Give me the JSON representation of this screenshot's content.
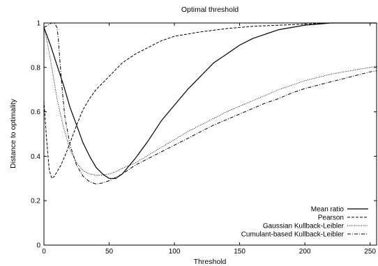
{
  "chart_data": {
    "type": "line",
    "title": "Optimal threshold",
    "xlabel": "Threshold",
    "ylabel": "Distance to optimality",
    "xlim": [
      0,
      255
    ],
    "ylim": [
      0,
      1
    ],
    "x_ticks": [
      0,
      50,
      100,
      150,
      200,
      250
    ],
    "y_ticks": [
      0,
      0.2,
      0.4,
      0.6,
      0.8,
      1
    ],
    "x_tick_labels": [
      "0",
      "50",
      "100",
      "150",
      "200",
      "250"
    ],
    "y_tick_labels": [
      "0",
      "0.2",
      "0.4",
      "0.6",
      "0.8",
      "1"
    ],
    "grid": false,
    "legend_position": "bottom-right",
    "series": [
      {
        "name": "Mean ratio",
        "dash": "solid",
        "x": [
          0,
          5,
          10,
          15,
          20,
          25,
          30,
          35,
          40,
          45,
          50,
          55,
          60,
          70,
          80,
          90,
          100,
          110,
          120,
          130,
          140,
          150,
          160,
          170,
          180,
          190,
          200,
          210,
          220,
          230,
          240,
          250,
          255
        ],
        "y": [
          0.98,
          0.9,
          0.81,
          0.72,
          0.62,
          0.54,
          0.46,
          0.4,
          0.35,
          0.32,
          0.3,
          0.3,
          0.32,
          0.39,
          0.47,
          0.56,
          0.63,
          0.7,
          0.76,
          0.82,
          0.86,
          0.9,
          0.93,
          0.95,
          0.97,
          0.98,
          0.99,
          0.995,
          1.0,
          1.0,
          1.0,
          1.0,
          1.0
        ]
      },
      {
        "name": "Pearson",
        "dash": "dashed",
        "x": [
          0,
          2,
          4,
          6,
          8,
          10,
          13,
          16,
          20,
          25,
          30,
          35,
          40,
          50,
          60,
          70,
          80,
          90,
          100,
          110,
          120,
          140,
          160,
          180,
          200,
          220,
          240,
          255
        ],
        "y": [
          0.65,
          0.48,
          0.34,
          0.3,
          0.31,
          0.33,
          0.36,
          0.4,
          0.46,
          0.54,
          0.61,
          0.66,
          0.7,
          0.76,
          0.82,
          0.86,
          0.89,
          0.92,
          0.94,
          0.95,
          0.96,
          0.975,
          0.985,
          0.99,
          0.995,
          1.0,
          1.0,
          1.0
        ]
      },
      {
        "name": "Gaussian Kullback-Leibler",
        "dash": "dotted",
        "x": [
          0,
          3,
          6,
          10,
          15,
          20,
          25,
          30,
          35,
          40,
          45,
          50,
          55,
          60,
          70,
          80,
          90,
          100,
          110,
          120,
          130,
          140,
          150,
          160,
          170,
          180,
          190,
          200,
          210,
          220,
          230,
          240,
          250,
          255
        ],
        "y": [
          0.98,
          0.9,
          0.8,
          0.66,
          0.53,
          0.43,
          0.37,
          0.335,
          0.32,
          0.315,
          0.315,
          0.32,
          0.33,
          0.345,
          0.37,
          0.405,
          0.44,
          0.475,
          0.51,
          0.54,
          0.57,
          0.6,
          0.625,
          0.65,
          0.675,
          0.7,
          0.72,
          0.74,
          0.755,
          0.77,
          0.78,
          0.79,
          0.8,
          0.805
        ]
      },
      {
        "name": "Cumulant-based Kullback-Leibler",
        "dash": "dash-dot",
        "x": [
          0,
          3,
          6,
          8,
          10,
          11,
          12,
          14,
          16,
          20,
          25,
          30,
          35,
          40,
          45,
          50,
          55,
          60,
          70,
          80,
          90,
          100,
          110,
          120,
          130,
          140,
          150,
          160,
          170,
          180,
          190,
          200,
          210,
          220,
          230,
          240,
          250,
          255
        ],
        "y": [
          0.98,
          0.99,
          1.0,
          1.0,
          0.98,
          0.93,
          0.85,
          0.7,
          0.58,
          0.45,
          0.36,
          0.31,
          0.285,
          0.275,
          0.28,
          0.29,
          0.305,
          0.32,
          0.36,
          0.39,
          0.42,
          0.45,
          0.48,
          0.51,
          0.54,
          0.565,
          0.59,
          0.615,
          0.64,
          0.66,
          0.685,
          0.705,
          0.72,
          0.735,
          0.75,
          0.765,
          0.78,
          0.785
        ]
      }
    ]
  }
}
